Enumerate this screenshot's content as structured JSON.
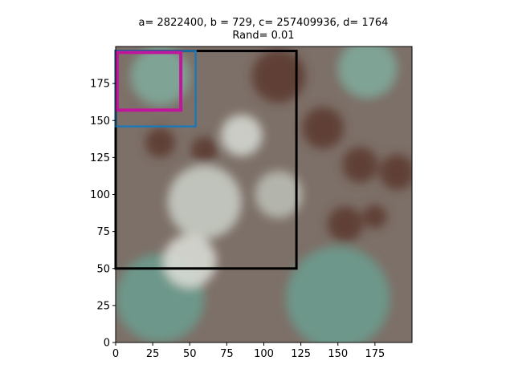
{
  "chart_data": {
    "type": "image",
    "title_line1": "a= 2822400, b = 729, c= 257409936, d= 1764",
    "title_line2": "Rand= 0.01",
    "xlim": [
      0,
      200
    ],
    "ylim": [
      0,
      200
    ],
    "xticks": [
      0,
      25,
      50,
      75,
      100,
      125,
      150,
      175
    ],
    "yticks": [
      0,
      25,
      50,
      75,
      100,
      125,
      150,
      175
    ],
    "grid": false,
    "boxes": [
      {
        "label": "black",
        "color": "#000000",
        "x0": 0,
        "x1": 122,
        "y0": 50,
        "y1": 197
      },
      {
        "label": "blue",
        "color": "#1f77b4",
        "x0": 0,
        "x1": 54,
        "y0": 146,
        "y1": 197
      },
      {
        "label": "magenta",
        "color": "#c0169b",
        "x0": 1,
        "x1": 44,
        "y0": 157,
        "y1": 196
      }
    ],
    "image_patches": [
      {
        "color": "#5d3a30",
        "cx": 110,
        "cy": 180,
        "r": 18
      },
      {
        "color": "#5d3a30",
        "cx": 140,
        "cy": 145,
        "r": 14
      },
      {
        "color": "#5d3a30",
        "cx": 165,
        "cy": 120,
        "r": 12
      },
      {
        "color": "#5d3a30",
        "cx": 190,
        "cy": 115,
        "r": 12
      },
      {
        "color": "#5d3a30",
        "cx": 155,
        "cy": 80,
        "r": 12
      },
      {
        "color": "#5d3a30",
        "cx": 175,
        "cy": 85,
        "r": 8
      },
      {
        "color": "#5d3a30",
        "cx": 30,
        "cy": 135,
        "r": 10
      },
      {
        "color": "#5d3a30",
        "cx": 60,
        "cy": 130,
        "r": 9
      },
      {
        "color": "#6c9b8e",
        "cx": 30,
        "cy": 30,
        "r": 30
      },
      {
        "color": "#6c9b8e",
        "cx": 150,
        "cy": 30,
        "r": 35
      },
      {
        "color": "#7fa89a",
        "cx": 170,
        "cy": 185,
        "r": 20
      },
      {
        "color": "#7fa89a",
        "cx": 30,
        "cy": 180,
        "r": 20
      },
      {
        "color": "#c8ccc4",
        "cx": 60,
        "cy": 95,
        "r": 25
      },
      {
        "color": "#d3d6cf",
        "cx": 85,
        "cy": 140,
        "r": 14
      },
      {
        "color": "#b9bcb4",
        "cx": 110,
        "cy": 100,
        "r": 16
      },
      {
        "color": "#d8dad4",
        "cx": 50,
        "cy": 55,
        "r": 18
      }
    ]
  }
}
